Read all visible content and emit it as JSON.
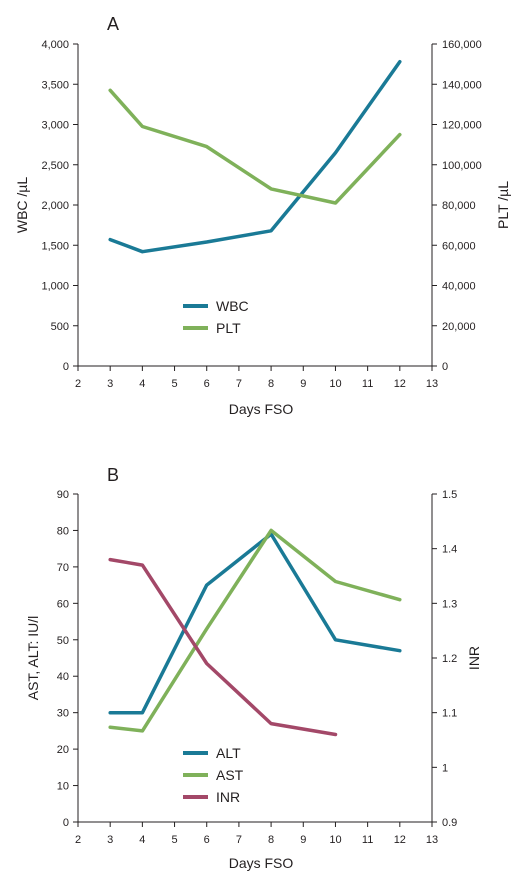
{
  "chart_data": [
    {
      "type": "line",
      "panel_label": "A",
      "xlabel": "Days FSO",
      "ylabel": "WBC /µL",
      "y2label": "PLT /µL",
      "xlim": [
        2,
        13
      ],
      "x_ticks": [
        "2",
        "3",
        "4",
        "5",
        "6",
        "7",
        "8",
        "9",
        "10",
        "11",
        "12",
        "13"
      ],
      "ylim": [
        0,
        4000
      ],
      "y_ticks": [
        "0",
        "500",
        "1,000",
        "1,500",
        "2,000",
        "2,500",
        "3,000",
        "3,500",
        "4,000"
      ],
      "y2lim": [
        0,
        160000
      ],
      "y2_ticks": [
        "0",
        "20,000",
        "40,000",
        "60,000",
        "80,000",
        "100,000",
        "120,000",
        "140,000",
        "160,000"
      ],
      "grid": false,
      "legend_position": "bottom-center",
      "series": [
        {
          "name": "WBC",
          "axis": "left",
          "color": "#1a7a96",
          "x": [
            3,
            4,
            6,
            8,
            10,
            12
          ],
          "y": [
            1570,
            1420,
            1540,
            1680,
            2650,
            3780
          ]
        },
        {
          "name": "PLT",
          "axis": "right",
          "color": "#7fb15a",
          "x": [
            3,
            4,
            6,
            8,
            10,
            12
          ],
          "y": [
            137000,
            119000,
            109000,
            88000,
            81000,
            115000
          ]
        }
      ]
    },
    {
      "type": "line",
      "panel_label": "B",
      "xlabel": "Days FSO",
      "ylabel": "AST, ALT: IU/l",
      "y2label": "INR",
      "xlim": [
        2,
        13
      ],
      "x_ticks": [
        "2",
        "3",
        "4",
        "5",
        "6",
        "7",
        "8",
        "9",
        "10",
        "11",
        "12",
        "13"
      ],
      "ylim": [
        0,
        90
      ],
      "y_ticks": [
        "0",
        "10",
        "20",
        "30",
        "40",
        "50",
        "60",
        "70",
        "80",
        "90"
      ],
      "y2lim": [
        0.9,
        1.5
      ],
      "y2_ticks": [
        "0.9",
        "1",
        "1.1",
        "1.2",
        "1.3",
        "1.4",
        "1.5"
      ],
      "grid": false,
      "legend_position": "bottom-center",
      "series": [
        {
          "name": "ALT",
          "axis": "left",
          "color": "#1a7a96",
          "x": [
            3,
            4,
            6,
            8,
            10,
            12
          ],
          "y": [
            30,
            30,
            65,
            79,
            50,
            47
          ]
        },
        {
          "name": "AST",
          "axis": "left",
          "color": "#7fb15a",
          "x": [
            3,
            4,
            6,
            8,
            10,
            12
          ],
          "y": [
            26,
            25,
            53,
            80,
            66,
            61
          ]
        },
        {
          "name": "INR",
          "axis": "right",
          "color": "#a34868",
          "x": [
            3,
            4,
            6,
            8,
            10
          ],
          "y": [
            1.38,
            1.37,
            1.19,
            1.08,
            1.06
          ]
        }
      ]
    }
  ]
}
